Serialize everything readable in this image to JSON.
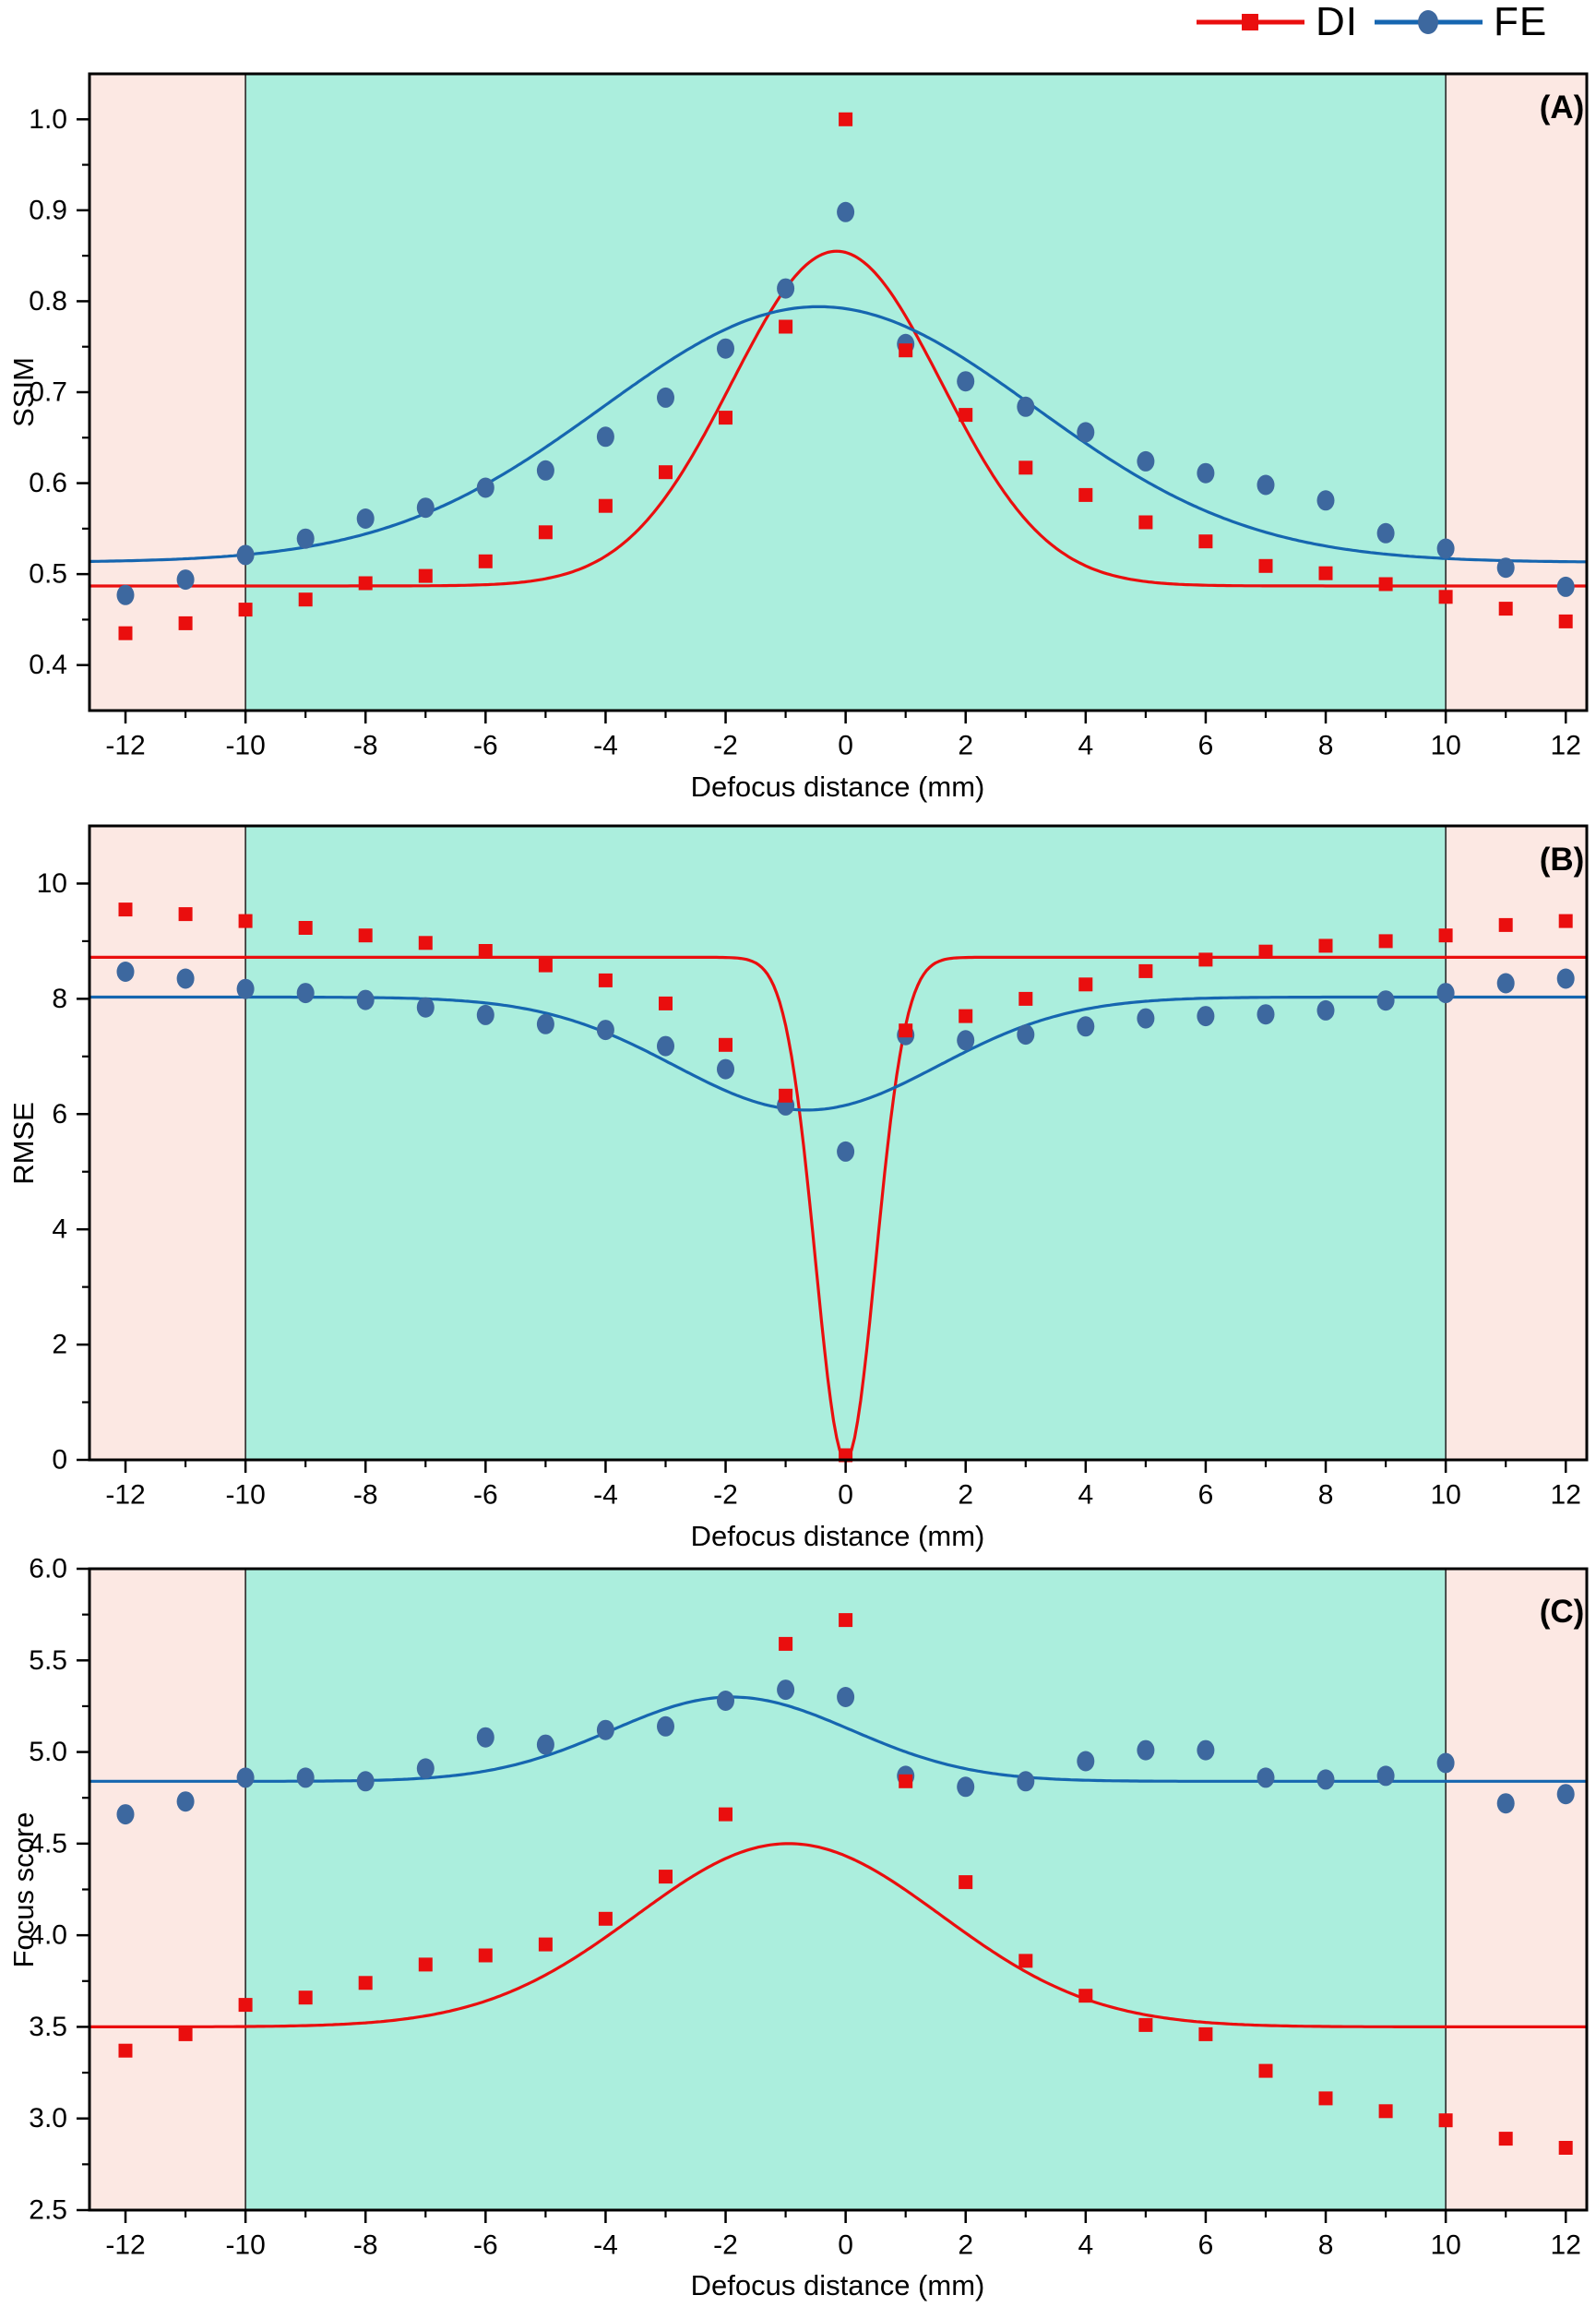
{
  "colors": {
    "di": "#ea0e0e",
    "fe_marker": "#3d689f",
    "fe_line": "#1666b0",
    "region_inner": "#abeedd",
    "region_outer": "#fce8e3",
    "boundary_line": "#3a3a3a",
    "frame": "#000000"
  },
  "legend": {
    "items": [
      {
        "label": "DI",
        "marker": "square"
      },
      {
        "label": "FE",
        "marker": "circle"
      }
    ]
  },
  "x_axis": {
    "label": "Defocus distance (mm)",
    "range": [
      -12.6,
      12.35
    ],
    "major_ticks": [
      -12,
      -10,
      -8,
      -6,
      -4,
      -2,
      0,
      2,
      4,
      6,
      8,
      10,
      12
    ],
    "minor_ticks": [
      -11,
      -9,
      -7,
      -5,
      -3,
      -1,
      1,
      3,
      5,
      7,
      9,
      11
    ],
    "highlight_region": [
      -10,
      10
    ]
  },
  "chart_data": [
    {
      "panel": "(A)",
      "type": "scatter",
      "ylabel": "SSIM",
      "ylim": [
        0.35,
        1.05
      ],
      "yticks": [
        0.4,
        0.5,
        0.6,
        0.7,
        0.8,
        0.9,
        1.0
      ],
      "ytick_decimals": 1,
      "y_minor_step": 0.05,
      "x": [
        -12,
        -11,
        -10,
        -9,
        -8,
        -7,
        -6,
        -5,
        -4,
        -3,
        -2,
        -1,
        0,
        1,
        2,
        3,
        4,
        5,
        6,
        7,
        8,
        9,
        10,
        11,
        12
      ],
      "series": [
        {
          "name": "DI",
          "values": [
            0.435,
            0.446,
            0.461,
            0.472,
            0.49,
            0.498,
            0.514,
            0.546,
            0.575,
            0.612,
            0.672,
            0.772,
            1.0,
            0.746,
            0.675,
            0.617,
            0.587,
            0.557,
            0.536,
            0.509,
            0.501,
            0.489,
            0.475,
            0.462,
            0.448
          ]
        },
        {
          "name": "FE",
          "values": [
            0.477,
            0.494,
            0.521,
            0.539,
            0.561,
            0.573,
            0.595,
            0.614,
            0.651,
            0.694,
            0.748,
            0.814,
            0.898,
            0.753,
            0.712,
            0.684,
            0.656,
            0.624,
            0.611,
            0.598,
            0.581,
            0.545,
            0.528,
            0.507,
            0.486
          ]
        }
      ],
      "fit_curves": [
        {
          "series": "DI",
          "baseline": 0.487,
          "amplitude": 0.368,
          "center": -0.15,
          "sigma": 1.75
        },
        {
          "series": "FE",
          "baseline": 0.513,
          "amplitude": 0.281,
          "center": -0.45,
          "sigma": 3.6
        }
      ]
    },
    {
      "panel": "(B)",
      "type": "scatter",
      "ylabel": "RMSE",
      "ylim": [
        0,
        11
      ],
      "yticks": [
        0,
        2,
        4,
        6,
        8,
        10
      ],
      "ytick_decimals": 0,
      "y_minor_step": 1,
      "x": [
        -12,
        -11,
        -10,
        -9,
        -8,
        -7,
        -6,
        -5,
        -4,
        -3,
        -2,
        -1,
        0,
        1,
        2,
        3,
        4,
        5,
        6,
        7,
        8,
        9,
        10,
        11,
        12
      ],
      "series": [
        {
          "name": "DI",
          "values": [
            9.55,
            9.47,
            9.35,
            9.23,
            9.1,
            8.97,
            8.83,
            8.58,
            8.32,
            7.92,
            7.2,
            6.32,
            0.08,
            7.45,
            7.7,
            8.0,
            8.25,
            8.48,
            8.68,
            8.82,
            8.92,
            9.0,
            9.1,
            9.28,
            9.35
          ]
        },
        {
          "name": "FE",
          "values": [
            8.47,
            8.35,
            8.17,
            8.1,
            7.98,
            7.85,
            7.72,
            7.56,
            7.46,
            7.18,
            6.78,
            6.15,
            5.35,
            7.37,
            7.28,
            7.38,
            7.52,
            7.66,
            7.7,
            7.73,
            7.8,
            7.97,
            8.1,
            8.27,
            8.35
          ]
        }
      ],
      "fit_curves": [
        {
          "series": "DI",
          "baseline": 8.72,
          "amplitude": -8.72,
          "center": 0.0,
          "sigma": 0.5
        },
        {
          "series": "FE",
          "baseline": 8.03,
          "amplitude": -1.96,
          "center": -0.65,
          "sigma": 2.2
        }
      ]
    },
    {
      "panel": "(C)",
      "type": "scatter",
      "ylabel": "Focus score",
      "ylim": [
        2.5,
        6.0
      ],
      "yticks": [
        2.5,
        3.0,
        3.5,
        4.0,
        4.5,
        5.0,
        5.5,
        6.0
      ],
      "ytick_decimals": 1,
      "y_minor_step": 0.25,
      "x": [
        -12,
        -11,
        -10,
        -9,
        -8,
        -7,
        -6,
        -5,
        -4,
        -3,
        -2,
        -1,
        0,
        1,
        2,
        3,
        4,
        5,
        6,
        7,
        8,
        9,
        10,
        11,
        12
      ],
      "series": [
        {
          "name": "DI",
          "values": [
            3.37,
            3.46,
            3.62,
            3.66,
            3.74,
            3.84,
            3.89,
            3.95,
            4.09,
            4.32,
            4.66,
            5.59,
            5.72,
            4.84,
            4.29,
            3.86,
            3.67,
            3.51,
            3.46,
            3.26,
            3.11,
            3.04,
            2.99,
            2.89,
            2.84
          ]
        },
        {
          "name": "FE",
          "values": [
            4.66,
            4.73,
            4.86,
            4.86,
            4.84,
            4.91,
            5.08,
            5.04,
            5.12,
            5.14,
            5.28,
            5.34,
            5.3,
            4.87,
            4.81,
            4.84,
            4.95,
            5.01,
            5.01,
            4.86,
            4.85,
            4.87,
            4.94,
            4.72,
            4.77
          ]
        }
      ],
      "fit_curves": [
        {
          "series": "DI",
          "baseline": 3.5,
          "amplitude": 1.0,
          "center": -0.95,
          "sigma": 2.55
        },
        {
          "series": "FE",
          "baseline": 4.84,
          "amplitude": 0.46,
          "center": -1.9,
          "sigma": 2.0
        }
      ]
    }
  ]
}
